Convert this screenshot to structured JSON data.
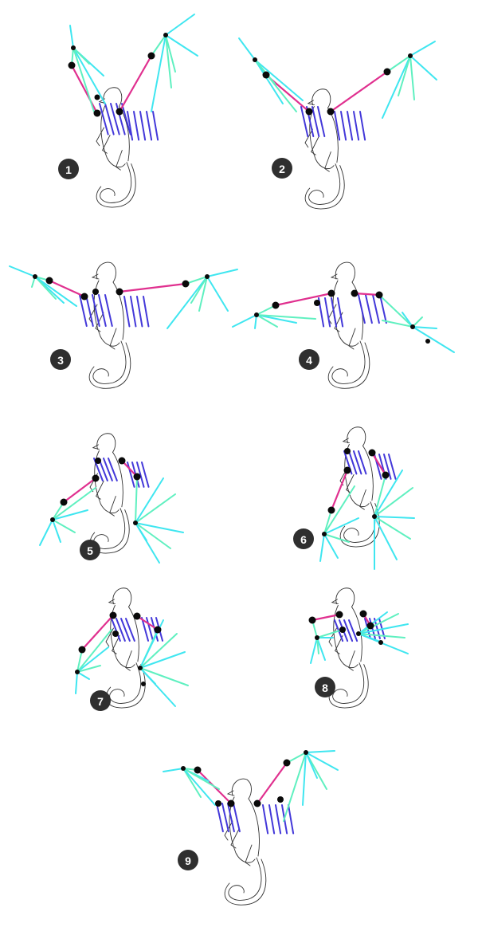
{
  "colors": {
    "background": "#ffffff",
    "upper_arm": "#e0308f",
    "forearm_back": "#4338d9",
    "finger_light": "#5ff0c0",
    "finger_cyan": "#3fe6f0",
    "joint": "#0a0a0a",
    "sketch": "#333333",
    "badge": "#2f2f2f",
    "badge_text": "#ffffff"
  },
  "steps": [
    {
      "label": "1"
    },
    {
      "label": "2"
    },
    {
      "label": "3"
    },
    {
      "label": "4"
    },
    {
      "label": "5"
    },
    {
      "label": "6"
    },
    {
      "label": "7"
    },
    {
      "label": "8"
    },
    {
      "label": "9"
    }
  ]
}
